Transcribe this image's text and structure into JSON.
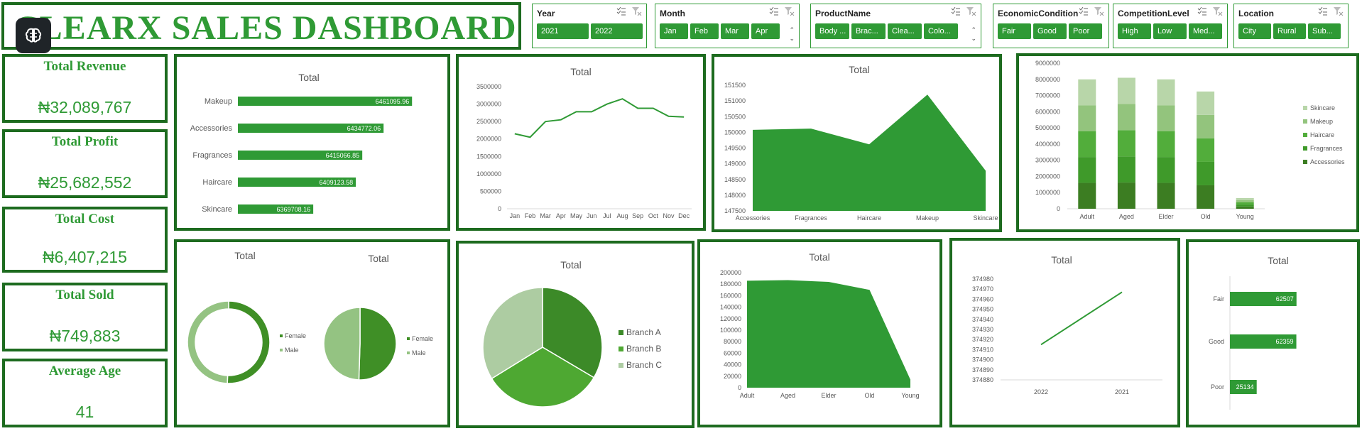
{
  "title": "CLEARX SALES DASHBOARD",
  "slicers": [
    {
      "name": "year",
      "label": "Year",
      "items": [
        "2021",
        "2022"
      ],
      "scroll": false
    },
    {
      "name": "month",
      "label": "Month",
      "items": [
        "Jan",
        "Feb",
        "Mar",
        "Apr"
      ],
      "scroll": true
    },
    {
      "name": "product",
      "label": "ProductName",
      "items": [
        "Body ...",
        "Brac...",
        "Clea...",
        "Colo..."
      ],
      "scroll": true
    },
    {
      "name": "economic",
      "label": "EconomicCondition",
      "items": [
        "Fair",
        "Good",
        "Poor"
      ],
      "scroll": false
    },
    {
      "name": "competition",
      "label": "CompetitionLevel",
      "items": [
        "High",
        "Low",
        "Med..."
      ],
      "scroll": false
    },
    {
      "name": "location",
      "label": "Location",
      "items": [
        "City",
        "Rural",
        "Sub..."
      ],
      "scroll": false
    }
  ],
  "kpis": {
    "revenue": {
      "label": "Total Revenue",
      "value": "₦32,089,767"
    },
    "profit": {
      "label": "Total Profit",
      "value": "₦25,682,552"
    },
    "cost": {
      "label": "Total Cost",
      "value": "₦6,407,215"
    },
    "sold": {
      "label": "Total Sold",
      "value": "₦749,883"
    },
    "age": {
      "label": "Average Age",
      "value": "41"
    }
  },
  "colors": {
    "dark_border": "#1d6b1f",
    "green": "#2f9a35",
    "green_dark": "#3c8a28",
    "green_mid": "#4ea832",
    "green_light": "#94c382",
    "green_pale": "#adcca2"
  },
  "chart_data": [
    {
      "id": "product_bar",
      "type": "bar",
      "orientation": "horizontal",
      "title": "Total",
      "categories": [
        "Makeup",
        "Accessories",
        "Fragrances",
        "Haircare",
        "Skincare"
      ],
      "values": [
        6461095.96,
        6434772.06,
        6415066.85,
        6409123.58,
        6369708.16
      ],
      "value_labels": [
        "6461095.96",
        "6434772.06",
        "6415066.85",
        "6409123.58",
        "6369708.16"
      ],
      "xlim": [
        6300000,
        6480000
      ]
    },
    {
      "id": "monthly_line",
      "type": "line",
      "title": "Total",
      "categories": [
        "Jan",
        "Feb",
        "Mar",
        "Apr",
        "May",
        "Jun",
        "Jul",
        "Aug",
        "Sep",
        "Oct",
        "Nov",
        "Dec"
      ],
      "values": [
        2150000,
        2050000,
        2500000,
        2550000,
        2780000,
        2780000,
        3000000,
        3150000,
        2880000,
        2880000,
        2650000,
        2630000
      ],
      "yticks": [
        "0",
        "500000",
        "1000000",
        "1500000",
        "2000000",
        "2500000",
        "3000000",
        "3500000"
      ],
      "ylim": [
        0,
        3500000
      ]
    },
    {
      "id": "product_area",
      "type": "area",
      "title": "Total",
      "categories": [
        "Accessories",
        "Fragrances",
        "Haircare",
        "Makeup",
        "Skincare"
      ],
      "values": [
        150080,
        150120,
        149620,
        151200,
        148780
      ],
      "yticks": [
        "147500",
        "148000",
        "148500",
        "149000",
        "149500",
        "150000",
        "150500",
        "151000",
        "151500"
      ],
      "ylim": [
        147500,
        151500
      ]
    },
    {
      "id": "age_stacked",
      "type": "bar",
      "stacked": true,
      "categories": [
        "Adult",
        "Aged",
        "Elder",
        "Old",
        "Young"
      ],
      "series": [
        {
          "name": "Accessories",
          "values": [
            1600000,
            1620000,
            1600000,
            1450000,
            140000
          ]
        },
        {
          "name": "Fragrances",
          "values": [
            1600000,
            1620000,
            1600000,
            1450000,
            130000
          ]
        },
        {
          "name": "Haircare",
          "values": [
            1600000,
            1620000,
            1600000,
            1450000,
            130000
          ]
        },
        {
          "name": "Makeup",
          "values": [
            1600000,
            1620000,
            1600000,
            1450000,
            130000
          ]
        },
        {
          "name": "Skincare",
          "values": [
            1600000,
            1620000,
            1600000,
            1450000,
            130000
          ]
        }
      ],
      "yticks": [
        "0",
        "1000000",
        "2000000",
        "3000000",
        "4000000",
        "5000000",
        "6000000",
        "7000000",
        "8000000",
        "9000000"
      ],
      "ylim": [
        0,
        9000000
      ],
      "legend": "right"
    },
    {
      "id": "gender_donut",
      "type": "pie",
      "hole": true,
      "title": "Total",
      "categories": [
        "Female",
        "Male"
      ],
      "values": [
        50.5,
        49.5
      ],
      "legend": "right"
    },
    {
      "id": "gender_pie",
      "type": "pie",
      "title": "Total",
      "categories": [
        "Female",
        "Male"
      ],
      "values": [
        50.5,
        49.5
      ],
      "legend": "right"
    },
    {
      "id": "branch_pie",
      "type": "pie",
      "title": "Total",
      "categories": [
        "Branch A",
        "Branch B",
        "Branch C"
      ],
      "values": [
        33.5,
        32.7,
        33.8
      ],
      "legend": "right"
    },
    {
      "id": "age_area",
      "type": "area",
      "title": "Total",
      "categories": [
        "Adult",
        "Aged",
        "Elder",
        "Old",
        "Young"
      ],
      "values": [
        186000,
        187000,
        184000,
        170000,
        14000
      ],
      "yticks": [
        "0",
        "20000",
        "40000",
        "60000",
        "80000",
        "100000",
        "120000",
        "140000",
        "160000",
        "180000",
        "200000"
      ],
      "ylim": [
        0,
        200000
      ]
    },
    {
      "id": "year_line",
      "type": "line",
      "title": "Total",
      "categories": [
        "2022",
        "2021"
      ],
      "values": [
        374915,
        374967
      ],
      "yticks": [
        "374880",
        "374890",
        "374900",
        "374910",
        "374920",
        "374930",
        "374940",
        "374950",
        "374960",
        "374970",
        "374980"
      ],
      "ylim": [
        374880,
        374980
      ]
    },
    {
      "id": "economic_bar",
      "type": "bar",
      "orientation": "horizontal",
      "title": "Total",
      "categories": [
        "Fair",
        "Good",
        "Poor"
      ],
      "values": [
        62507,
        62359,
        25134
      ],
      "value_labels": [
        "62507",
        "62359",
        "25134"
      ],
      "xlim": [
        0,
        80000
      ]
    }
  ]
}
